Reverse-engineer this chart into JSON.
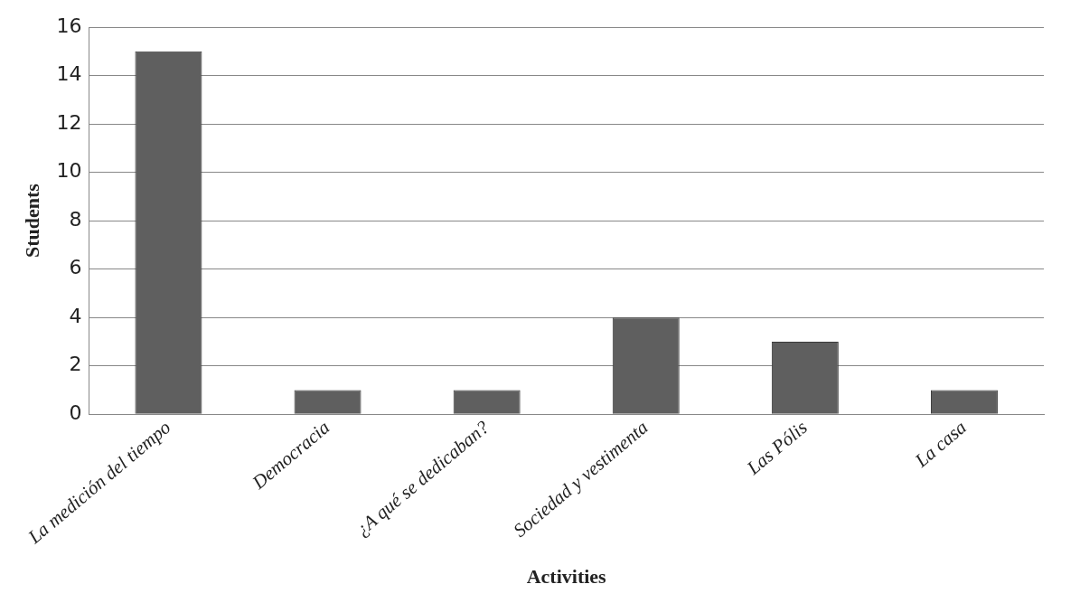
{
  "chart_data": {
    "type": "bar",
    "xlabel": "Activities",
    "ylabel": "Students",
    "categories": [
      "La medición del tiempo",
      "Democracia",
      "¿A qué se dedicaban?",
      "Sociedad y vestimenta",
      "Las Pólis",
      "La casa"
    ],
    "values": [
      15,
      1,
      1,
      4,
      3,
      1
    ],
    "color": "#5f5f5f",
    "ylim": [
      0,
      16
    ],
    "yticks": [
      0,
      2,
      4,
      6,
      8,
      10,
      12,
      14,
      16
    ],
    "grid": "y",
    "legend": false
  }
}
